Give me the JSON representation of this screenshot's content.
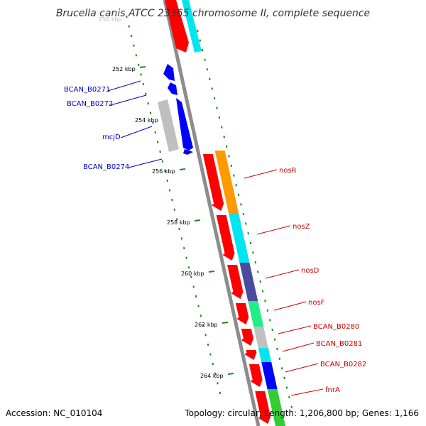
{
  "title": "Brucella canis ATCC 23365 chromosome II, complete sequence",
  "faded_tick": "250 kbp",
  "accession": "Accession: NC_010104",
  "summary": "Topology: circular; Length: 1,206,800 bp; Genes: 1,166",
  "colors": {
    "backbone": "#8c8c8c",
    "gc_dots": "#1a8a1a",
    "label_reverse": "#0000cc",
    "label_forward": "#cc0000",
    "cds": "#ff0000",
    "gene_blue": "#0000ff",
    "gene_grey": "#bfbfbf"
  },
  "ticks": [
    {
      "label": "252 kbp"
    },
    {
      "label": "254 kbp"
    },
    {
      "label": "256 kbp"
    },
    {
      "label": "258 kbp"
    },
    {
      "label": "260 kbp"
    },
    {
      "label": "262 kbp"
    },
    {
      "label": "264 kbp"
    }
  ],
  "reverse_genes": [
    {
      "name": "BCAN_B0271"
    },
    {
      "name": "BCAN_B0272"
    },
    {
      "name": "mcjD"
    },
    {
      "name": "BCAN_B0274"
    }
  ],
  "forward_genes": [
    {
      "name": "nosR",
      "color": "#ff9900"
    },
    {
      "name": "nosZ",
      "color": "#00e5ee"
    },
    {
      "name": "nosD",
      "color": "#4b4b9b"
    },
    {
      "name": "nosF",
      "color": "#22ee88"
    },
    {
      "name": "BCAN_B0280",
      "color": "#c0c0c0"
    },
    {
      "name": "BCAN_B0281",
      "color": "#00e5ee"
    },
    {
      "name": "BCAN_B0282",
      "color": "#0000ff"
    },
    {
      "name": "fnrA",
      "color": "#33cc33"
    }
  ],
  "top_partial_color": "#00e5ee"
}
